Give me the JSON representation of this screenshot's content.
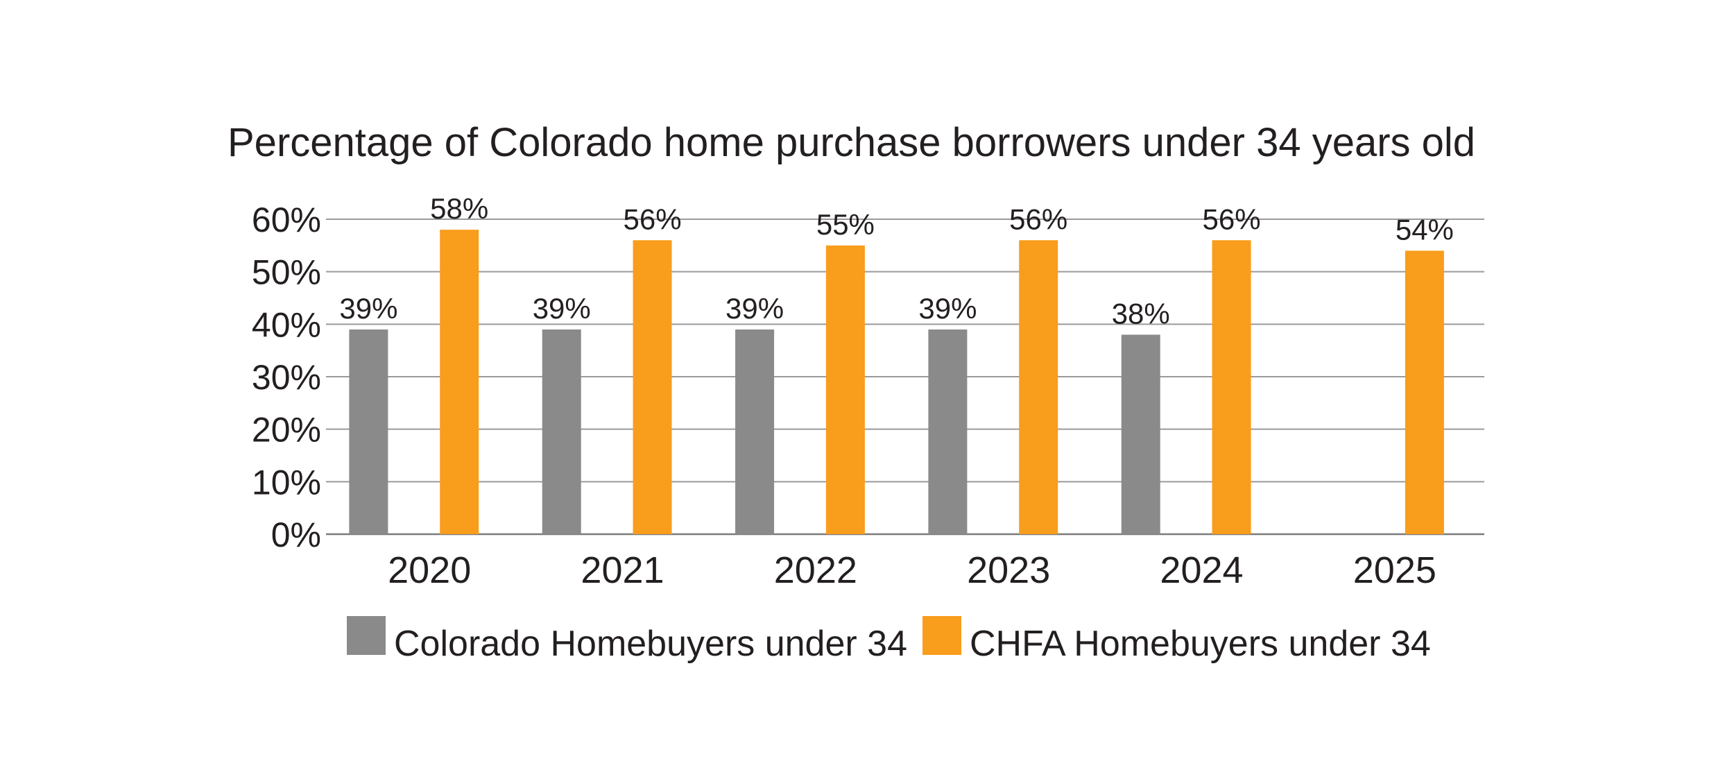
{
  "chart_data": {
    "type": "bar",
    "title": "Percentage of Colorado home purchase borrowers under 34 years old",
    "xlabel": "",
    "ylabel": "",
    "categories": [
      "2020",
      "2021",
      "2022",
      "2023",
      "2024",
      "2025"
    ],
    "series": [
      {
        "name": "Colorado Homebuyers under 34",
        "color": "#8a8a8a",
        "values": [
          39,
          39,
          39,
          39,
          38,
          null
        ],
        "labels": [
          "39%",
          "39%",
          "39%",
          "39%",
          "38%",
          ""
        ]
      },
      {
        "name": "CHFA Homebuyers under 34",
        "color": "#f99d1c",
        "values": [
          58,
          56,
          55,
          56,
          56,
          54
        ],
        "labels": [
          "58%",
          "56%",
          "55%",
          "56%",
          "56%",
          "54%"
        ]
      }
    ],
    "ylim": [
      0,
      60
    ],
    "yticks": [
      0,
      10,
      20,
      30,
      40,
      50,
      60
    ],
    "ytick_labels": [
      "0%",
      "10%",
      "20%",
      "30%",
      "40%",
      "50%",
      "60%"
    ],
    "grid": true,
    "legend": "bottom"
  }
}
